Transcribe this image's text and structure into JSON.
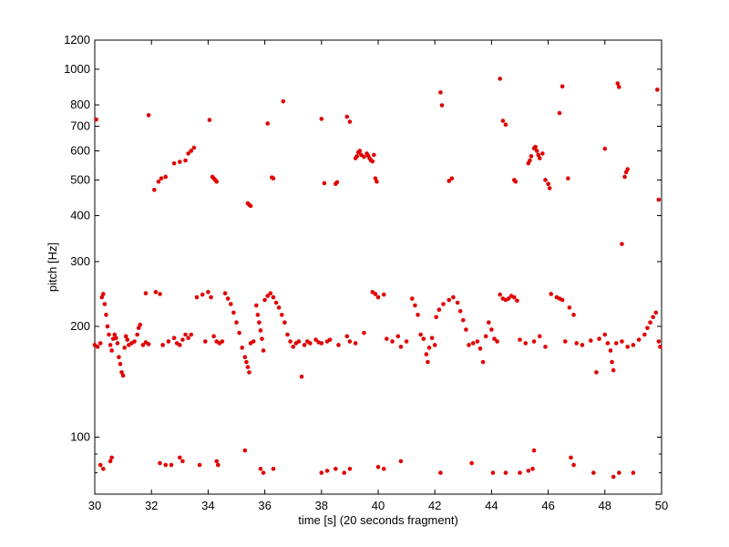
{
  "chart_data": {
    "type": "scatter",
    "title": "",
    "xlabel": "time [s] (20 seconds fragment)",
    "ylabel": "pitch [Hz]",
    "xlim": [
      30,
      50
    ],
    "ylim": [
      70,
      1200
    ],
    "yscale": "log",
    "grid": false,
    "legend": "none",
    "marker_color": "#e00000",
    "x_ticks": [
      30,
      32,
      34,
      36,
      38,
      40,
      42,
      44,
      46,
      48,
      50
    ],
    "y_ticks": [
      100,
      200,
      300,
      400,
      500,
      600,
      700,
      800,
      1000,
      1200
    ],
    "points": [
      [
        30.05,
        730
      ],
      [
        30.0,
        178
      ],
      [
        30.1,
        176
      ],
      [
        30.2,
        180
      ],
      [
        30.25,
        240
      ],
      [
        30.3,
        245
      ],
      [
        30.35,
        230
      ],
      [
        30.4,
        215
      ],
      [
        30.45,
        200
      ],
      [
        30.5,
        190
      ],
      [
        30.55,
        178
      ],
      [
        30.6,
        172
      ],
      [
        30.65,
        185
      ],
      [
        30.7,
        190
      ],
      [
        30.75,
        186
      ],
      [
        30.8,
        180
      ],
      [
        30.85,
        165
      ],
      [
        30.9,
        158
      ],
      [
        30.95,
        150
      ],
      [
        31.0,
        147
      ],
      [
        31.05,
        175
      ],
      [
        31.1,
        188
      ],
      [
        31.15,
        184
      ],
      [
        31.2,
        178
      ],
      [
        31.3,
        180
      ],
      [
        31.4,
        182
      ],
      [
        31.5,
        190
      ],
      [
        31.55,
        198
      ],
      [
        31.6,
        202
      ],
      [
        31.7,
        178
      ],
      [
        31.8,
        181
      ],
      [
        31.9,
        179
      ],
      [
        30.2,
        84
      ],
      [
        30.3,
        82
      ],
      [
        30.55,
        86
      ],
      [
        30.6,
        88
      ],
      [
        31.9,
        750
      ],
      [
        32.1,
        470
      ],
      [
        32.25,
        495
      ],
      [
        32.35,
        505
      ],
      [
        32.5,
        510
      ],
      [
        32.8,
        555
      ],
      [
        33.0,
        560
      ],
      [
        33.2,
        565
      ],
      [
        33.3,
        590
      ],
      [
        33.4,
        600
      ],
      [
        33.5,
        612
      ],
      [
        34.05,
        728
      ],
      [
        34.15,
        510
      ],
      [
        34.2,
        505
      ],
      [
        34.25,
        500
      ],
      [
        34.3,
        495
      ],
      [
        35.4,
        432
      ],
      [
        35.45,
        428
      ],
      [
        35.5,
        425
      ],
      [
        36.1,
        712
      ],
      [
        36.25,
        508
      ],
      [
        36.3,
        505
      ],
      [
        36.65,
        818
      ],
      [
        31.8,
        246
      ],
      [
        32.15,
        248
      ],
      [
        32.3,
        245
      ],
      [
        32.4,
        178
      ],
      [
        32.6,
        182
      ],
      [
        32.8,
        186
      ],
      [
        32.9,
        180
      ],
      [
        33.0,
        178
      ],
      [
        33.1,
        184
      ],
      [
        33.2,
        190
      ],
      [
        33.3,
        186
      ],
      [
        33.4,
        190
      ],
      [
        33.6,
        240
      ],
      [
        33.8,
        244
      ],
      [
        33.9,
        182
      ],
      [
        34.0,
        248
      ],
      [
        34.1,
        240
      ],
      [
        34.2,
        188
      ],
      [
        34.3,
        182
      ],
      [
        34.4,
        180
      ],
      [
        34.5,
        182
      ],
      [
        34.6,
        246
      ],
      [
        34.7,
        238
      ],
      [
        34.8,
        230
      ],
      [
        34.9,
        218
      ],
      [
        35.0,
        205
      ],
      [
        35.1,
        192
      ],
      [
        35.2,
        175
      ],
      [
        35.3,
        165
      ],
      [
        35.35,
        160
      ],
      [
        35.4,
        155
      ],
      [
        35.45,
        150
      ],
      [
        35.5,
        180
      ],
      [
        35.6,
        182
      ],
      [
        35.7,
        228
      ],
      [
        35.75,
        215
      ],
      [
        35.8,
        205
      ],
      [
        35.85,
        195
      ],
      [
        35.9,
        185
      ],
      [
        35.95,
        172
      ],
      [
        36.0,
        236
      ],
      [
        36.1,
        242
      ],
      [
        36.2,
        246
      ],
      [
        36.3,
        240
      ],
      [
        36.4,
        232
      ],
      [
        36.5,
        225
      ],
      [
        36.6,
        215
      ],
      [
        36.7,
        205
      ],
      [
        36.8,
        190
      ],
      [
        36.9,
        182
      ],
      [
        37.0,
        176
      ],
      [
        37.1,
        180
      ],
      [
        37.2,
        182
      ],
      [
        37.3,
        146
      ],
      [
        37.4,
        178
      ],
      [
        37.5,
        182
      ],
      [
        37.6,
        180
      ],
      [
        37.8,
        184
      ],
      [
        37.9,
        181
      ],
      [
        33.0,
        88
      ],
      [
        33.1,
        86
      ],
      [
        32.3,
        85
      ],
      [
        32.5,
        84
      ],
      [
        32.7,
        84
      ],
      [
        33.7,
        84
      ],
      [
        34.3,
        86
      ],
      [
        34.35,
        84
      ],
      [
        35.3,
        92
      ],
      [
        35.85,
        82
      ],
      [
        35.95,
        80
      ],
      [
        36.3,
        82
      ],
      [
        38.0,
        733
      ],
      [
        38.1,
        490
      ],
      [
        38.5,
        488
      ],
      [
        38.55,
        493
      ],
      [
        38.9,
        743
      ],
      [
        39.0,
        720
      ],
      [
        39.2,
        573
      ],
      [
        39.25,
        580
      ],
      [
        39.3,
        595
      ],
      [
        39.35,
        600
      ],
      [
        39.4,
        585
      ],
      [
        39.5,
        578
      ],
      [
        39.6,
        590
      ],
      [
        39.65,
        582
      ],
      [
        39.7,
        572
      ],
      [
        39.75,
        565
      ],
      [
        39.8,
        562
      ],
      [
        39.85,
        585
      ],
      [
        39.9,
        505
      ],
      [
        39.95,
        495
      ],
      [
        38.0,
        180
      ],
      [
        38.2,
        182
      ],
      [
        38.3,
        184
      ],
      [
        38.6,
        178
      ],
      [
        38.9,
        188
      ],
      [
        39.0,
        182
      ],
      [
        39.2,
        180
      ],
      [
        39.5,
        192
      ],
      [
        39.8,
        248
      ],
      [
        39.9,
        245
      ],
      [
        40.0,
        240
      ],
      [
        40.2,
        244
      ],
      [
        40.3,
        185
      ],
      [
        40.5,
        182
      ],
      [
        40.7,
        188
      ],
      [
        40.8,
        176
      ],
      [
        41.0,
        182
      ],
      [
        41.2,
        238
      ],
      [
        41.3,
        228
      ],
      [
        41.4,
        215
      ],
      [
        41.5,
        190
      ],
      [
        41.6,
        185
      ],
      [
        41.7,
        168
      ],
      [
        41.75,
        160
      ],
      [
        41.8,
        175
      ],
      [
        41.9,
        186
      ],
      [
        42.0,
        178
      ],
      [
        42.05,
        212
      ],
      [
        42.15,
        222
      ],
      [
        42.3,
        230
      ],
      [
        42.5,
        236
      ],
      [
        42.65,
        240
      ],
      [
        42.8,
        232
      ],
      [
        42.9,
        220
      ],
      [
        43.0,
        208
      ],
      [
        43.1,
        196
      ],
      [
        43.2,
        178
      ],
      [
        43.35,
        180
      ],
      [
        43.5,
        182
      ],
      [
        43.6,
        174
      ],
      [
        43.7,
        160
      ],
      [
        43.8,
        188
      ],
      [
        43.9,
        205
      ],
      [
        44.0,
        196
      ],
      [
        44.1,
        185
      ],
      [
        44.2,
        182
      ],
      [
        44.3,
        244
      ],
      [
        44.4,
        238
      ],
      [
        44.5,
        236
      ],
      [
        44.6,
        238
      ],
      [
        44.7,
        242
      ],
      [
        44.8,
        240
      ],
      [
        44.9,
        235
      ],
      [
        45.0,
        184
      ],
      [
        45.2,
        180
      ],
      [
        45.5,
        182
      ],
      [
        45.7,
        188
      ],
      [
        45.9,
        176
      ],
      [
        46.1,
        245
      ],
      [
        46.3,
        240
      ],
      [
        46.4,
        238
      ],
      [
        46.5,
        236
      ],
      [
        46.6,
        182
      ],
      [
        46.75,
        225
      ],
      [
        46.9,
        215
      ],
      [
        47.0,
        180
      ],
      [
        47.2,
        178
      ],
      [
        47.5,
        183
      ],
      [
        47.7,
        150
      ],
      [
        47.8,
        185
      ],
      [
        48.0,
        190
      ],
      [
        48.1,
        180
      ],
      [
        48.2,
        172
      ],
      [
        48.25,
        160
      ],
      [
        48.3,
        152
      ],
      [
        48.4,
        180
      ],
      [
        48.6,
        182
      ],
      [
        48.8,
        176
      ],
      [
        49.0,
        178
      ],
      [
        49.2,
        184
      ],
      [
        49.4,
        190
      ],
      [
        49.5,
        198
      ],
      [
        49.6,
        205
      ],
      [
        49.7,
        212
      ],
      [
        49.8,
        218
      ],
      [
        49.9,
        182
      ],
      [
        49.95,
        176
      ],
      [
        38.0,
        80
      ],
      [
        38.2,
        81
      ],
      [
        38.5,
        82
      ],
      [
        38.8,
        80
      ],
      [
        39.0,
        82
      ],
      [
        40.0,
        83
      ],
      [
        40.2,
        82
      ],
      [
        40.8,
        86
      ],
      [
        42.2,
        80
      ],
      [
        43.3,
        85
      ],
      [
        44.05,
        80
      ],
      [
        44.5,
        80
      ],
      [
        45.0,
        80
      ],
      [
        45.3,
        81
      ],
      [
        45.45,
        82
      ],
      [
        45.5,
        92
      ],
      [
        46.8,
        88
      ],
      [
        46.9,
        84
      ],
      [
        47.6,
        80
      ],
      [
        48.3,
        78
      ],
      [
        48.5,
        80
      ],
      [
        49.0,
        80
      ],
      [
        42.2,
        865
      ],
      [
        42.25,
        798
      ],
      [
        42.5,
        497
      ],
      [
        42.6,
        505
      ],
      [
        44.3,
        942
      ],
      [
        44.4,
        724
      ],
      [
        44.5,
        707
      ],
      [
        44.8,
        500
      ],
      [
        44.85,
        495
      ],
      [
        45.3,
        555
      ],
      [
        45.35,
        565
      ],
      [
        45.4,
        580
      ],
      [
        45.5,
        610
      ],
      [
        45.55,
        615
      ],
      [
        45.6,
        600
      ],
      [
        45.65,
        585
      ],
      [
        45.7,
        573
      ],
      [
        45.8,
        590
      ],
      [
        45.9,
        500
      ],
      [
        46.0,
        488
      ],
      [
        46.05,
        475
      ],
      [
        46.4,
        760
      ],
      [
        46.5,
        898
      ],
      [
        46.7,
        505
      ],
      [
        48.0,
        608
      ],
      [
        48.45,
        915
      ],
      [
        48.5,
        895
      ],
      [
        48.6,
        335
      ],
      [
        48.7,
        510
      ],
      [
        48.75,
        525
      ],
      [
        48.8,
        535
      ],
      [
        49.85,
        880
      ],
      [
        49.9,
        442
      ]
    ]
  }
}
